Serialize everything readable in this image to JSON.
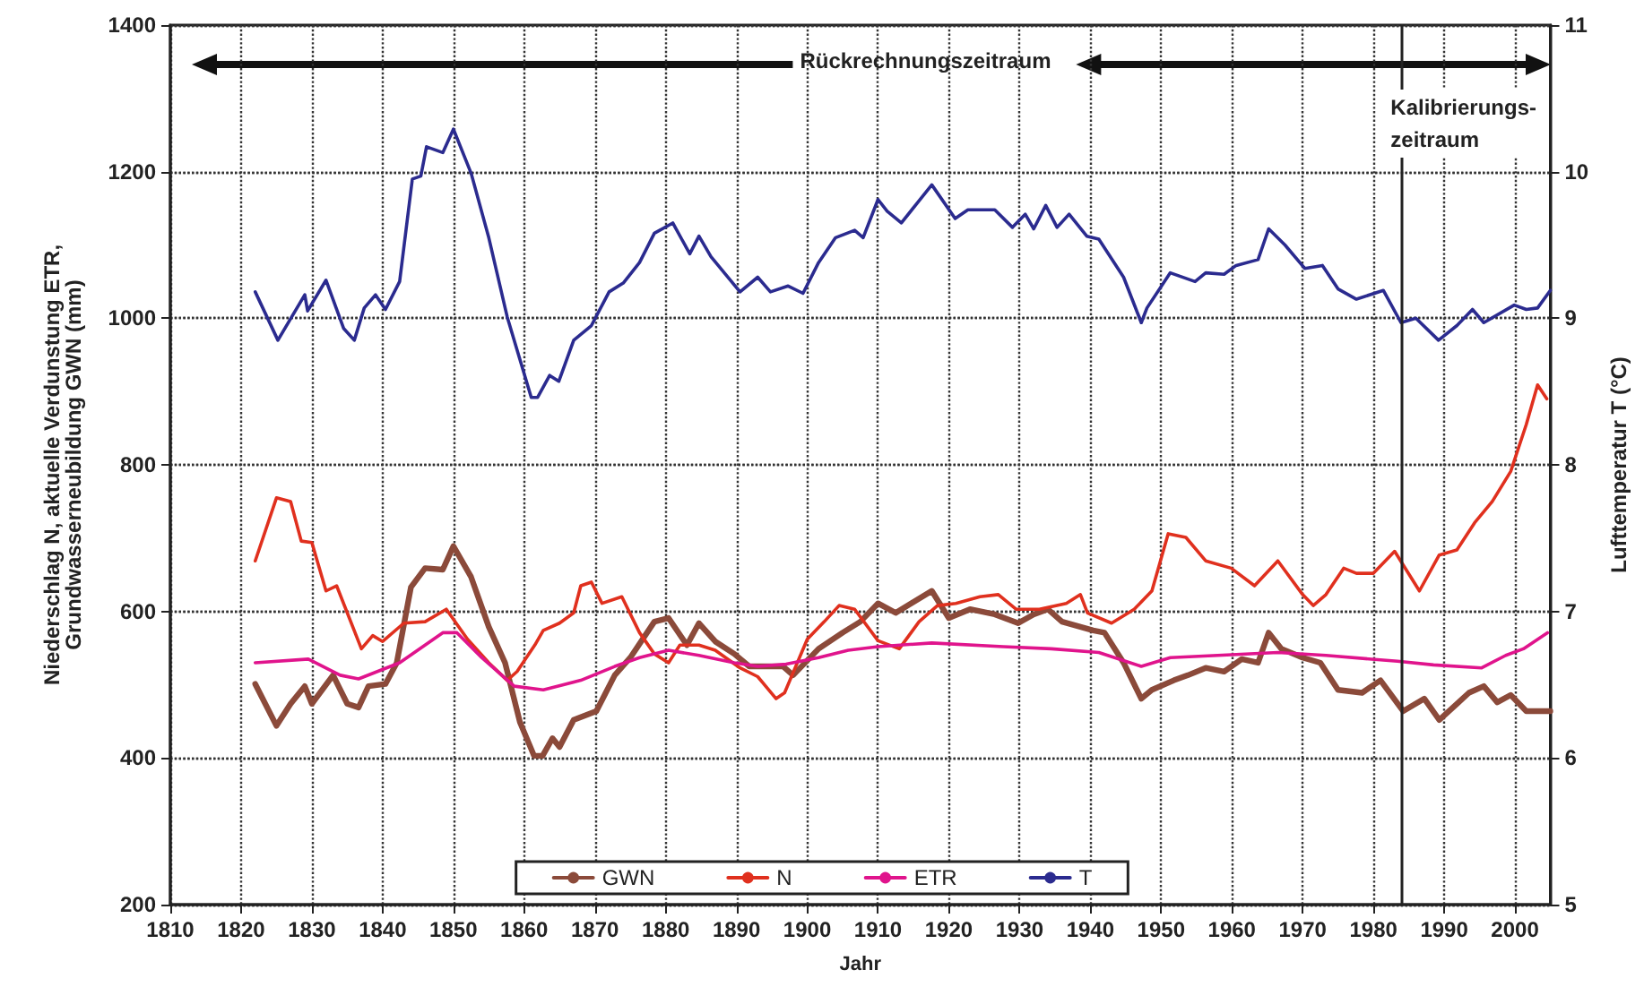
{
  "chart_data": {
    "type": "line",
    "xlabel": "Jahr",
    "ylabel": "Niederschlag N, aktuelle Verdunstung ETR,\nGrundwasserneubildung GWN (mm)",
    "y2label": "Lufttemperatur T (°C)",
    "xlim": [
      1810,
      2005
    ],
    "xticks": [
      1810,
      1820,
      1830,
      1840,
      1850,
      1860,
      1870,
      1880,
      1890,
      1900,
      1910,
      1920,
      1930,
      1940,
      1950,
      1960,
      1970,
      1980,
      1990,
      2000
    ],
    "ylim": [
      200,
      1400
    ],
    "yticks": [
      200,
      400,
      600,
      800,
      1000,
      1200,
      1400
    ],
    "y2lim": [
      5,
      11
    ],
    "y2ticks": [
      5,
      6,
      7,
      8,
      9,
      10,
      11
    ],
    "grid": true,
    "legend": "bottom",
    "marker": "none",
    "line_style": "solid",
    "annotations": [
      "Rückrechnungszeitraum",
      "Kalibrierungs-\nzeitraum"
    ],
    "ref_lines": [
      {
        "axis": "x",
        "value": 1984,
        "label": null,
        "color": "#222222",
        "line_style": "solid"
      }
    ],
    "series": [
      {
        "name": "GWN",
        "color": "#8b4a3a",
        "x": [
          1822,
          1825,
          1827,
          1829,
          1830,
          1833,
          1835,
          1836.6,
          1838,
          1840.4,
          1842,
          1844,
          1846,
          1848.5,
          1850,
          1852.5,
          1855,
          1857.3,
          1859.4,
          1861.4,
          1862.6,
          1864,
          1865,
          1867,
          1870.2,
          1872.8,
          1875,
          1878.4,
          1880.4,
          1883,
          1884.7,
          1887,
          1889.7,
          1891.8,
          1894,
          1896.6,
          1898,
          1901.6,
          1905,
          1907.5,
          1910,
          1912.5,
          1917.6,
          1920,
          1923,
          1926.5,
          1929.8,
          1932,
          1934,
          1936,
          1940.4,
          1942,
          1944.7,
          1947.2,
          1948.7,
          1951.8,
          1953.8,
          1956.3,
          1958.9,
          1961.4,
          1963.7,
          1965.2,
          1967,
          1970,
          1972.5,
          1975,
          1978.4,
          1981,
          1984.2,
          1987.2,
          1989.3,
          1991.8,
          1993.5,
          1995.6,
          1997.5,
          1999.4,
          2001.6,
          2005
        ],
        "values": [
          501,
          444,
          474,
          498,
          474,
          513,
          474,
          469,
          498,
          501,
          530,
          633,
          659,
          657,
          689,
          647,
          579,
          530,
          449,
          403,
          403,
          427,
          415,
          452,
          464,
          513,
          537,
          586,
          591,
          554,
          584,
          559,
          542,
          525,
          525,
          525,
          513,
          549,
          571,
          586,
          611,
          598,
          628,
          591,
          603,
          596,
          584,
          596,
          603,
          586,
          574,
          571,
          530,
          481,
          493,
          506,
          513,
          523,
          518,
          535,
          530,
          571,
          549,
          537,
          530,
          493,
          489,
          506,
          464,
          481,
          452,
          474,
          489,
          498,
          476,
          486,
          464,
          464
        ]
      },
      {
        "name": "N",
        "color": "#e0301e",
        "x": [
          1822,
          1825,
          1827,
          1828.5,
          1830,
          1832,
          1833.5,
          1837,
          1838.6,
          1840,
          1843,
          1846,
          1849,
          1852,
          1855,
          1857.6,
          1859,
          1861.5,
          1862.7,
          1865,
          1867,
          1868,
          1869.5,
          1871,
          1873.8,
          1876.3,
          1878.4,
          1880.4,
          1882,
          1884.7,
          1887,
          1890.5,
          1893,
          1895.6,
          1896.8,
          1900,
          1902.4,
          1904.5,
          1906.7,
          1910,
          1913,
          1915.8,
          1918.4,
          1921,
          1924.4,
          1927,
          1929.5,
          1932.8,
          1936.6,
          1938.6,
          1939.6,
          1943,
          1946.2,
          1948.7,
          1951,
          1953.5,
          1956.3,
          1959.9,
          1963.2,
          1966.5,
          1970,
          1971.5,
          1973.3,
          1975.8,
          1977.6,
          1980,
          1983,
          1986.5,
          1989.3,
          1991.8,
          1994.3,
          1996.8,
          1999.4,
          2001.6,
          2003.2,
          2004.5
        ],
        "values": [
          669,
          755,
          750,
          696,
          694,
          628,
          635,
          549,
          567,
          559,
          584,
          586,
          603,
          562,
          530,
          506,
          518,
          554,
          574,
          584,
          598,
          635,
          640,
          611,
          620,
          571,
          542,
          530,
          554,
          554,
          547,
          523,
          511,
          481,
          489,
          562,
          586,
          608,
          603,
          560,
          549,
          586,
          608,
          611,
          620,
          623,
          603,
          603,
          611,
          623,
          598,
          584,
          603,
          628,
          706,
          701,
          669,
          659,
          635,
          669,
          623,
          608,
          623,
          659,
          652,
          652,
          682,
          628,
          677,
          684,
          721,
          750,
          791,
          855,
          909,
          890
        ]
      },
      {
        "name": "ETR",
        "color": "#e0148c",
        "x": [
          1822,
          1829.5,
          1834,
          1836.6,
          1842.4,
          1848.5,
          1850.5,
          1854,
          1858.6,
          1862.7,
          1868,
          1872.8,
          1876.3,
          1880.4,
          1884.7,
          1889.7,
          1893,
          1897,
          1901.6,
          1905.8,
          1910,
          1917.6,
          1927.7,
          1934.5,
          1941.2,
          1947.2,
          1951.3,
          1958,
          1966.5,
          1973.3,
          1983.4,
          1988.5,
          1995.3,
          1998.7,
          2001.2,
          2004.6
        ],
        "values": [
          530,
          535,
          513,
          508,
          530,
          571,
          571,
          537,
          498,
          493,
          506,
          525,
          537,
          547,
          540,
          530,
          525,
          528,
          537,
          547,
          552,
          557,
          552,
          549,
          544,
          525,
          537,
          540,
          544,
          540,
          532,
          527,
          523,
          540,
          549,
          571
        ]
      },
      {
        "name": "T",
        "color": "#2b2b8f",
        "axis": "y2",
        "x": [
          1822,
          1825.2,
          1829,
          1829.4,
          1832,
          1834.5,
          1836,
          1837.4,
          1839,
          1840.4,
          1842.4,
          1844.2,
          1845.4,
          1846.2,
          1848.5,
          1850,
          1852.5,
          1855,
          1857.6,
          1861,
          1861.9,
          1863.6,
          1864.9,
          1867,
          1869.5,
          1872,
          1874,
          1876.3,
          1878.4,
          1881,
          1883.4,
          1884.7,
          1886.4,
          1890.5,
          1893,
          1894.8,
          1897.3,
          1899.4,
          1901.6,
          1904,
          1906.7,
          1907.9,
          1910,
          1911.3,
          1913.3,
          1915.6,
          1917.6,
          1920.9,
          1922.7,
          1926.5,
          1929,
          1930.8,
          1932,
          1933.7,
          1935.3,
          1937,
          1939.5,
          1941.2,
          1944.7,
          1947.2,
          1948,
          1951.3,
          1954.8,
          1956.3,
          1958.9,
          1960.6,
          1963.7,
          1965.2,
          1967.5,
          1970.3,
          1972.8,
          1975,
          1977.6,
          1981.4,
          1983.9,
          1986,
          1989.2,
          1991.8,
          1994,
          1995.6,
          1999.9,
          2001.6,
          2003.2,
          2005
        ],
        "values": [
          9.18,
          8.85,
          9.16,
          9.05,
          9.26,
          8.93,
          8.85,
          9.07,
          9.16,
          9.06,
          9.25,
          9.95,
          9.97,
          10.17,
          10.13,
          10.29,
          9.99,
          9.55,
          9.01,
          8.46,
          8.46,
          8.61,
          8.57,
          8.85,
          8.95,
          9.18,
          9.24,
          9.38,
          9.58,
          9.65,
          9.44,
          9.56,
          9.42,
          9.18,
          9.28,
          9.18,
          9.22,
          9.17,
          9.38,
          9.55,
          9.6,
          9.55,
          9.81,
          9.73,
          9.65,
          9.79,
          9.91,
          9.68,
          9.74,
          9.74,
          9.62,
          9.71,
          9.61,
          9.77,
          9.62,
          9.71,
          9.56,
          9.54,
          9.28,
          8.97,
          9.07,
          9.31,
          9.25,
          9.31,
          9.3,
          9.36,
          9.4,
          9.61,
          9.5,
          9.34,
          9.36,
          9.2,
          9.13,
          9.19,
          8.97,
          9.0,
          8.85,
          8.95,
          9.06,
          8.97,
          9.09,
          9.06,
          9.07,
          9.19
        ]
      }
    ]
  }
}
